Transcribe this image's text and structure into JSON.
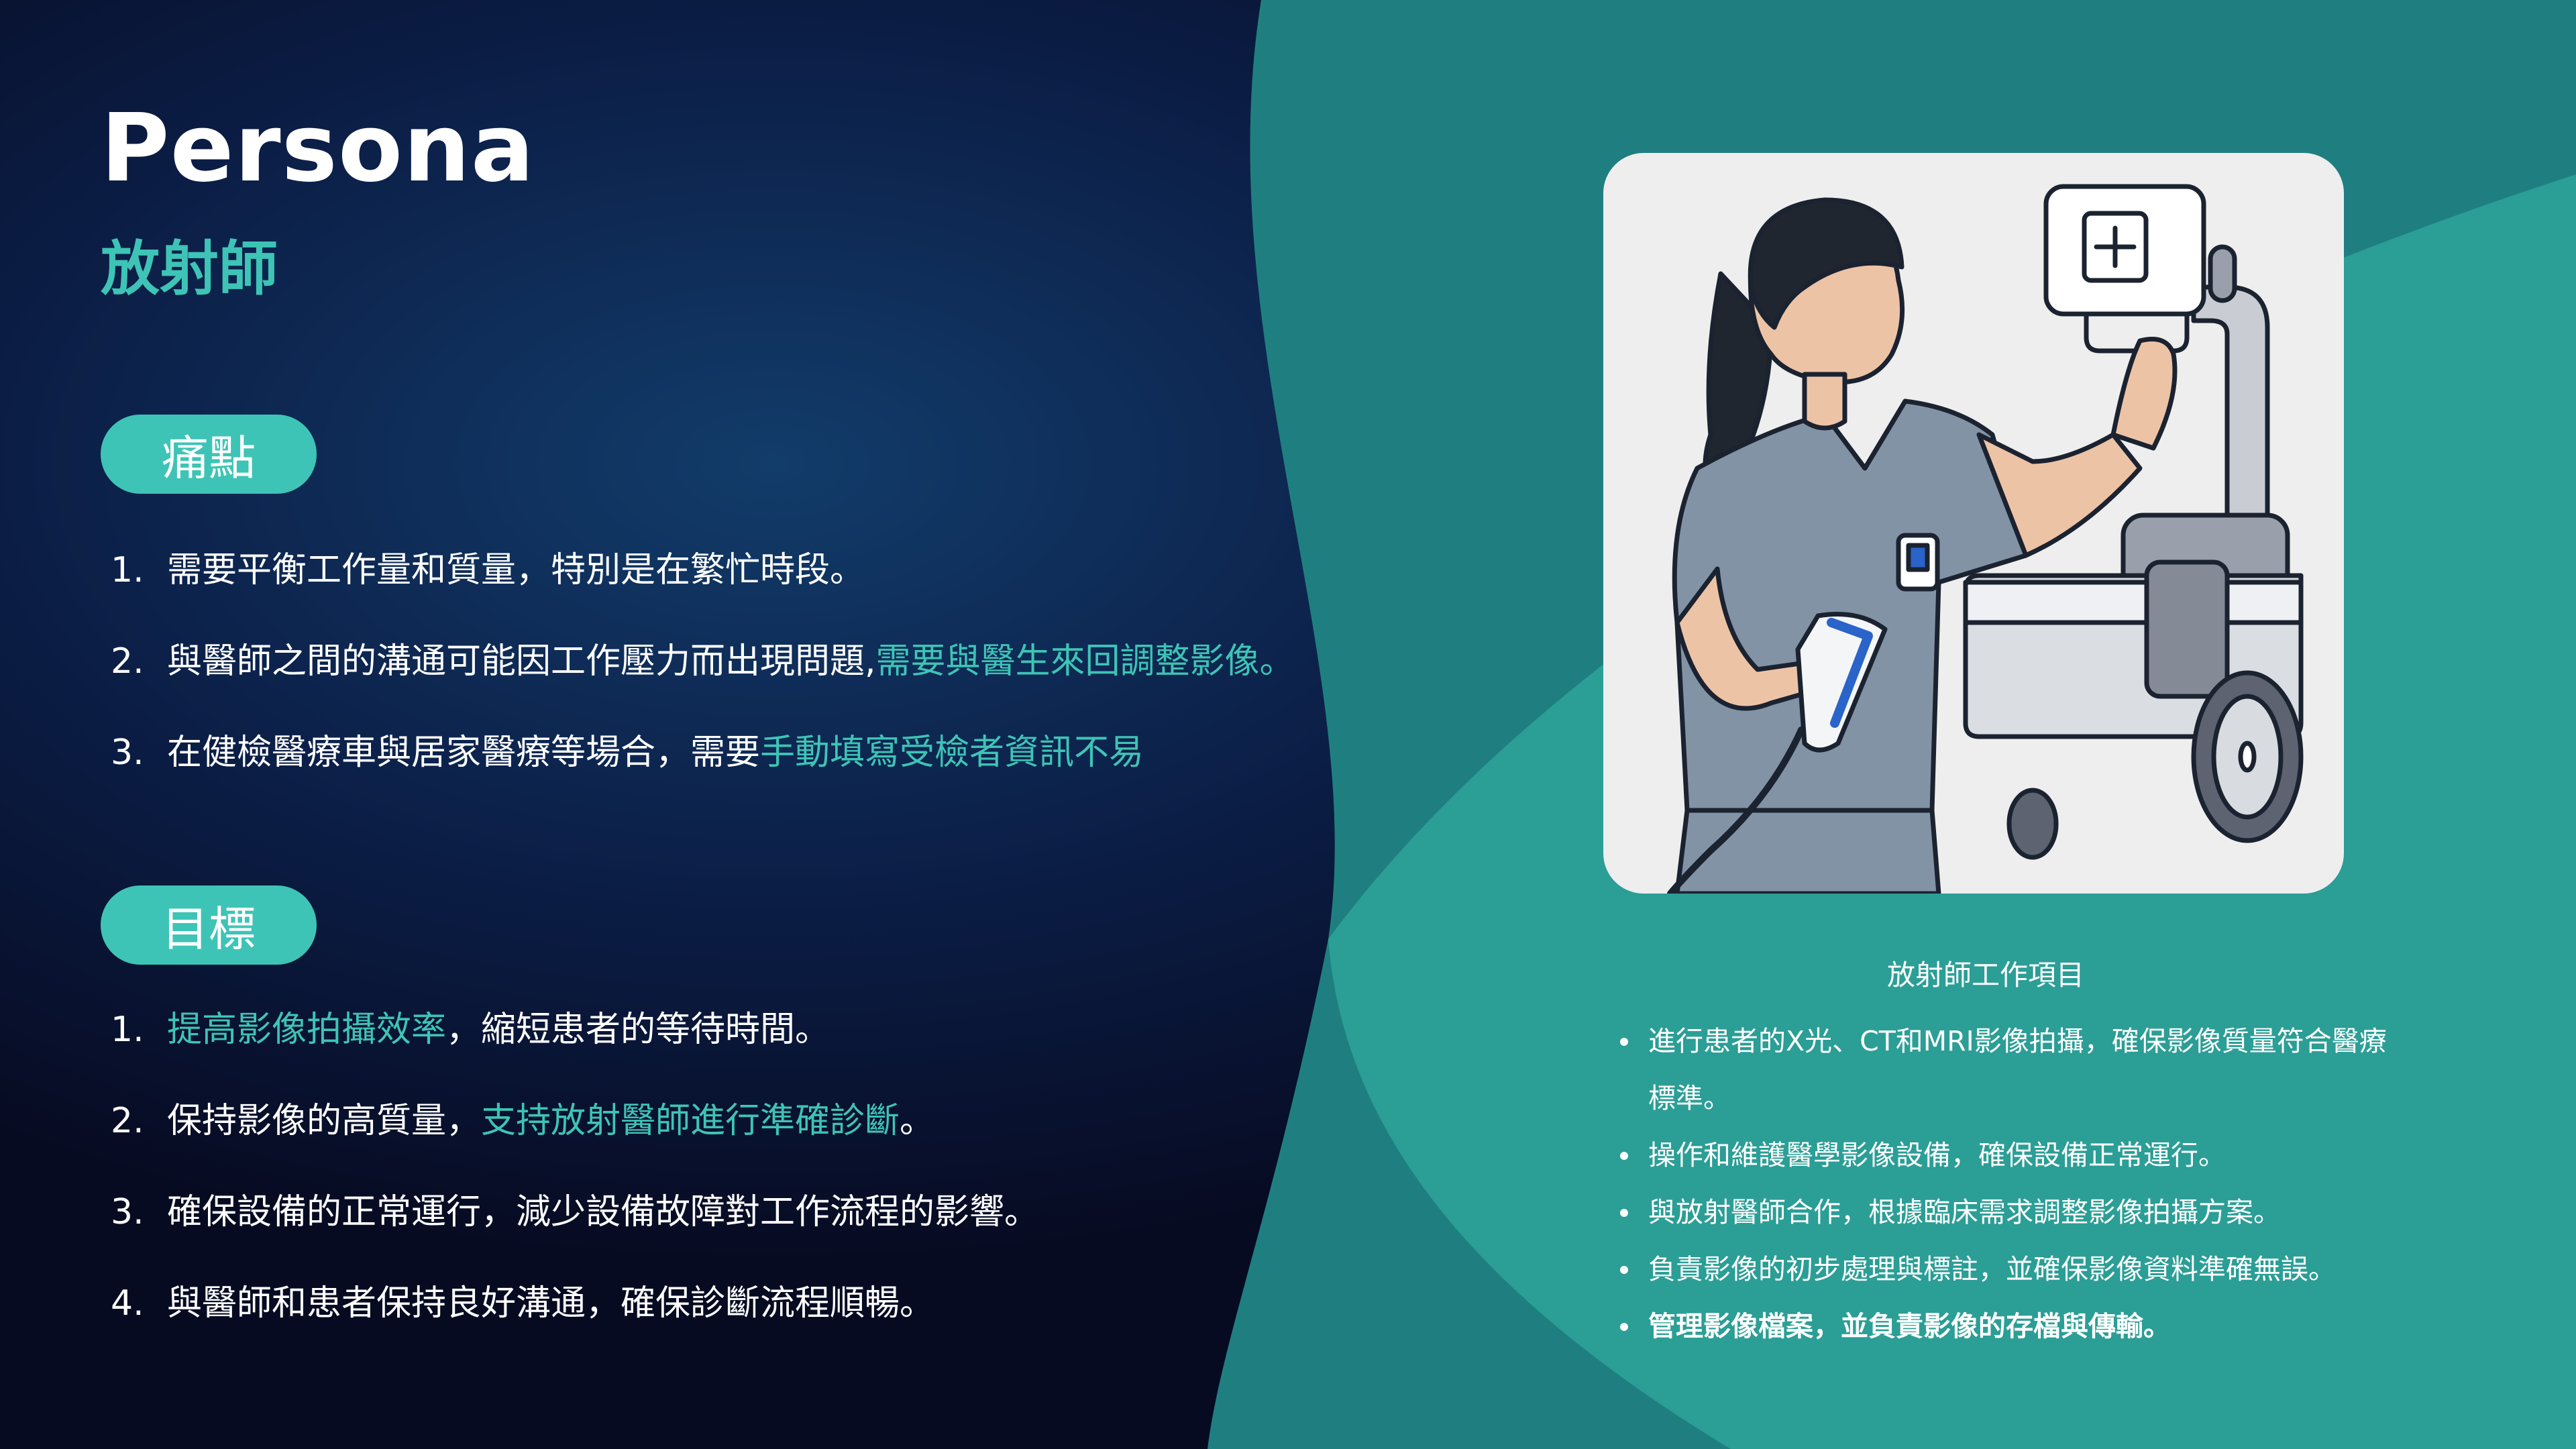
{
  "header": {
    "title": "Persona",
    "subtitle": "放射師"
  },
  "pain_points": {
    "label": "痛點",
    "items": [
      {
        "num": "1.",
        "text": "需要平衡工作量和質量，特別是在繁忙時段。",
        "highlight": ""
      },
      {
        "num": "2.",
        "text": "與醫師之間的溝通可能因工作壓力而出現問題, ",
        "highlight": "需要與醫生來回調整影像。"
      },
      {
        "num": "3.",
        "text": "在健檢醫療車與居家醫療等場合，需要",
        "highlight": "手動填寫受檢者資訊不易"
      }
    ]
  },
  "goals": {
    "label": "目標",
    "items": [
      {
        "num": "1.",
        "lead": "",
        "highlight": "提高影像拍攝效率",
        "rest": "，縮短患者的等待時間。"
      },
      {
        "num": "2.",
        "lead": "保持影像的高質量，",
        "highlight": "支持放射醫師進行準確診斷",
        "rest": "。"
      },
      {
        "num": "3.",
        "lead": "確保設備的正常運行，減少設備故障對工作流程的影響。",
        "highlight": "",
        "rest": ""
      },
      {
        "num": "4.",
        "lead": "與醫師和患者保持良好溝通，確保診斷流程順暢。",
        "highlight": "",
        "rest": ""
      }
    ]
  },
  "illustration": {
    "icon": "radiographer-xray-illustration"
  },
  "work_items": {
    "caption": "放射師工作項目",
    "items": [
      "進行患者的X光、CT和MRI影像拍攝，確保影像質量符合醫療標準。",
      "操作和維護醫學影像設備，確保設備正常運行。",
      "與放射醫師合作，根據臨床需求調整影像拍攝方案。",
      "負責影像的初步處理與標註，並確保影像資料準確無誤。",
      "管理影像檔案，並負責影像的存檔與傳輸。"
    ]
  },
  "colors": {
    "accent": "#3ec4b6",
    "background_dark": "#070b22",
    "teal_panel": "#2b9e96"
  }
}
